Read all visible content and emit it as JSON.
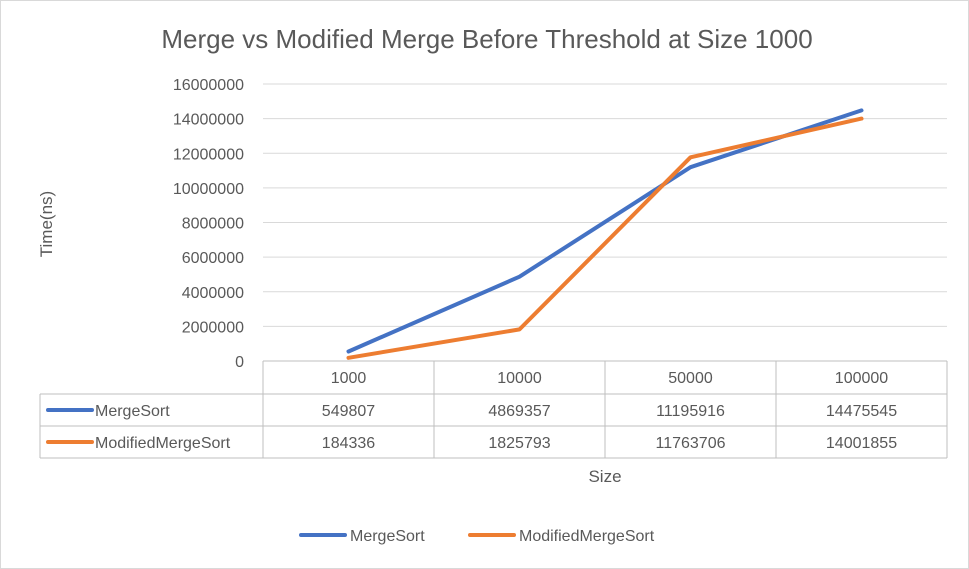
{
  "chart_data": {
    "type": "line",
    "title": "Merge vs Modified Merge Before Threshold at Size 1000",
    "xlabel": "Size",
    "ylabel": "Time(ns)",
    "categories": [
      "1000",
      "10000",
      "50000",
      "100000"
    ],
    "ylim": [
      0,
      16000000
    ],
    "yticks": [
      "0",
      "2000000",
      "4000000",
      "6000000",
      "8000000",
      "10000000",
      "12000000",
      "14000000",
      "16000000"
    ],
    "grid": true,
    "legend": "bottom",
    "data_table": true,
    "series": [
      {
        "name": "MergeSort",
        "color": "#4472c4",
        "values": [
          549807,
          4869357,
          11195916,
          14475545
        ],
        "labels": [
          "549807",
          "4869357",
          "11195916",
          "14475545"
        ]
      },
      {
        "name": "ModifiedMergeSort",
        "color": "#ed7d31",
        "values": [
          184336,
          1825793,
          11763706,
          14001855
        ],
        "labels": [
          "184336",
          "1825793",
          "11763706",
          "14001855"
        ]
      }
    ]
  }
}
